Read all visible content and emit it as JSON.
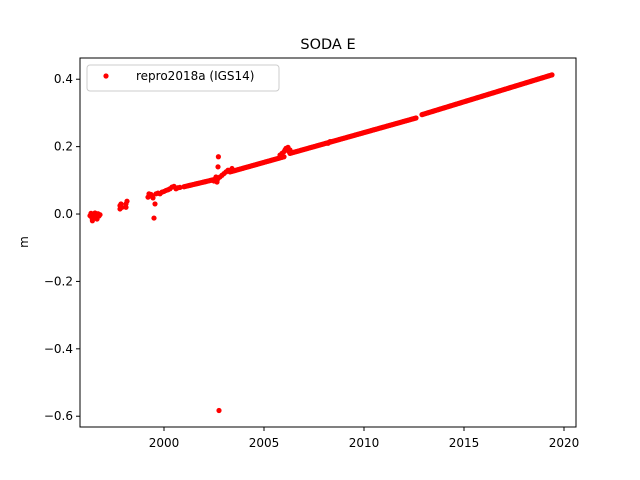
{
  "chart_data": {
    "type": "scatter",
    "title": "SODA E",
    "xlabel": "",
    "ylabel": "m",
    "xlim": [
      1995.8,
      2020.6
    ],
    "ylim": [
      -0.632,
      0.463
    ],
    "xticks": [
      2000,
      2005,
      2010,
      2015,
      2020
    ],
    "yticks": [
      -0.6,
      -0.4,
      -0.2,
      0.0,
      0.2,
      0.4
    ],
    "xtick_labels": [
      "2000",
      "2005",
      "2010",
      "2015",
      "2020"
    ],
    "ytick_labels": [
      "−0.6",
      "−0.4",
      "−0.2",
      "0.0",
      "0.2",
      "0.4"
    ],
    "grid": false,
    "legend_position": "top-left",
    "marker_color": "#ff0000",
    "series": [
      {
        "name": "repro2018a (IGS14)",
        "segments": [
          {
            "start": [
              2001.0,
              0.081
            ],
            "end": [
              2002.7,
              0.105
            ]
          },
          {
            "start": [
              2003.3,
              0.125
            ],
            "end": [
              2006.0,
              0.17
            ]
          },
          {
            "start": [
              2006.3,
              0.18
            ],
            "end": [
              2012.6,
              0.285
            ]
          },
          {
            "start": [
              2012.9,
              0.295
            ],
            "end": [
              2019.4,
              0.413
            ]
          }
        ],
        "points": [
          [
            1996.3,
            -0.005
          ],
          [
            1996.35,
            0.002
          ],
          [
            1996.4,
            -0.012
          ],
          [
            1996.42,
            -0.02
          ],
          [
            1996.45,
            0.0
          ],
          [
            1996.5,
            -0.008
          ],
          [
            1996.55,
            0.003
          ],
          [
            1996.6,
            -0.003
          ],
          [
            1996.65,
            -0.015
          ],
          [
            1996.7,
            0.001
          ],
          [
            1996.75,
            -0.006
          ],
          [
            1996.8,
            -0.002
          ],
          [
            1997.8,
            0.015
          ],
          [
            1997.8,
            0.025
          ],
          [
            1997.85,
            0.03
          ],
          [
            1997.9,
            0.02
          ],
          [
            1998.1,
            0.02
          ],
          [
            1998.1,
            0.03
          ],
          [
            1998.15,
            0.038
          ],
          [
            1999.2,
            0.05
          ],
          [
            1999.25,
            0.06
          ],
          [
            1999.3,
            0.055
          ],
          [
            1999.35,
            0.058
          ],
          [
            1999.4,
            0.052
          ],
          [
            1999.45,
            0.048
          ],
          [
            1999.5,
            -0.012
          ],
          [
            1999.55,
            0.03
          ],
          [
            1999.6,
            0.06
          ],
          [
            1999.7,
            0.062
          ],
          [
            1999.8,
            0.06
          ],
          [
            1999.9,
            0.065
          ],
          [
            2000.0,
            0.067
          ],
          [
            2000.1,
            0.07
          ],
          [
            2000.2,
            0.072
          ],
          [
            2000.3,
            0.075
          ],
          [
            2000.4,
            0.08
          ],
          [
            2000.5,
            0.082
          ],
          [
            2000.6,
            0.075
          ],
          [
            2000.7,
            0.078
          ],
          [
            2000.8,
            0.079
          ],
          [
            2002.5,
            0.098
          ],
          [
            2002.6,
            0.11
          ],
          [
            2002.65,
            0.095
          ],
          [
            2002.7,
            0.14
          ],
          [
            2002.72,
            0.17
          ],
          [
            2002.75,
            -0.583
          ],
          [
            2002.8,
            0.11
          ],
          [
            2002.9,
            0.115
          ],
          [
            2003.0,
            0.12
          ],
          [
            2003.1,
            0.125
          ],
          [
            2003.2,
            0.13
          ],
          [
            2003.4,
            0.135
          ],
          [
            2005.8,
            0.175
          ],
          [
            2005.9,
            0.18
          ],
          [
            2006.0,
            0.185
          ],
          [
            2006.05,
            0.19
          ],
          [
            2006.1,
            0.195
          ],
          [
            2006.2,
            0.198
          ],
          [
            2006.25,
            0.185
          ],
          [
            2006.3,
            0.19
          ],
          [
            2008.2,
            0.21
          ],
          [
            2008.3,
            0.215
          ]
        ]
      }
    ]
  }
}
